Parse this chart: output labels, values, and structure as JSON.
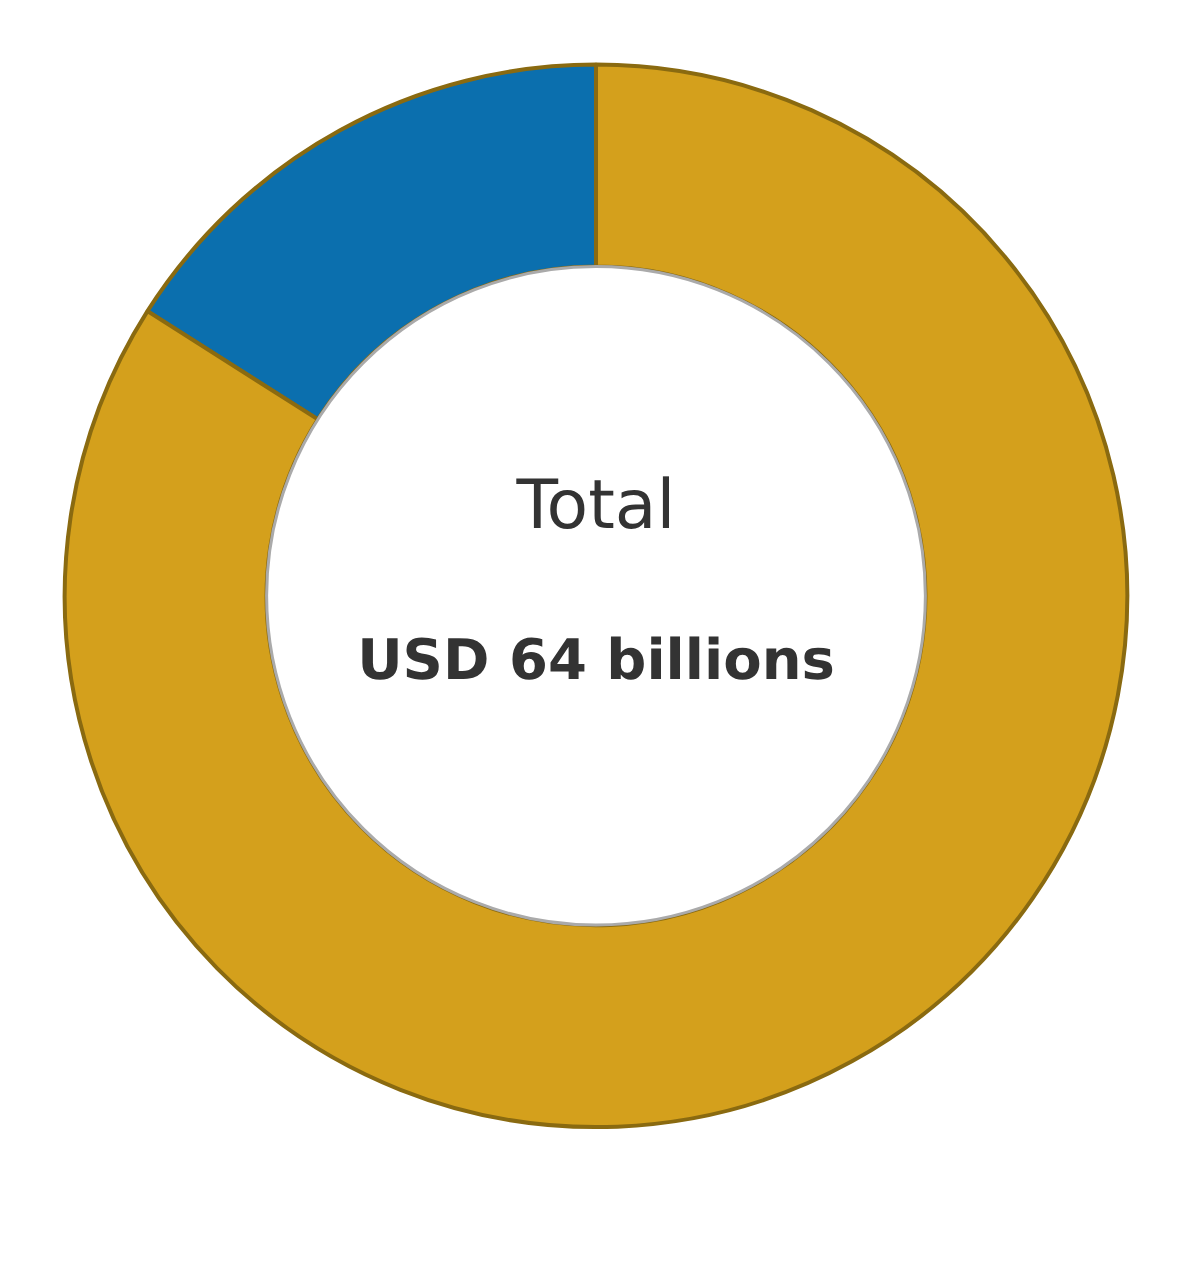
{
  "chart_data": {
    "type": "donut",
    "categories": [
      null,
      null
    ],
    "values": [
      16,
      84
    ],
    "colors": [
      "#0b6fae",
      "#d4a01c"
    ],
    "annotations": [
      "Total",
      "USD 64 billions"
    ]
  }
}
